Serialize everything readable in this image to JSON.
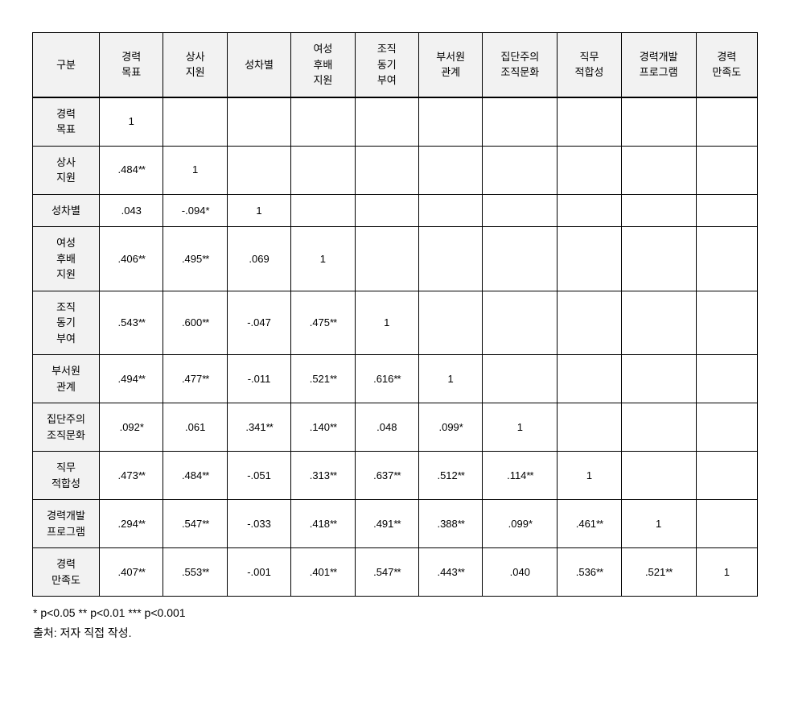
{
  "table": {
    "corner_label": "구분",
    "columns": [
      "경력\n목표",
      "상사\n지원",
      "성차별",
      "여성\n후배\n지원",
      "조직\n동기\n부여",
      "부서원\n관계",
      "집단주의\n조직문화",
      "직무\n적합성",
      "경력개발\n프로그램",
      "경력\n만족도"
    ],
    "row_labels": [
      "경력\n목표",
      "상사\n지원",
      "성차별",
      "여성\n후배\n지원",
      "조직\n동기\n부여",
      "부서원\n관계",
      "집단주의\n조직문화",
      "직무\n적합성",
      "경력개발\n프로그램",
      "경력\n만족도"
    ],
    "cells": [
      {
        "r": 0,
        "c": 0,
        "v": "1",
        "s": ""
      },
      {
        "r": 1,
        "c": 0,
        "v": ".484",
        "s": "**"
      },
      {
        "r": 1,
        "c": 1,
        "v": "1",
        "s": ""
      },
      {
        "r": 2,
        "c": 0,
        "v": ".043",
        "s": ""
      },
      {
        "r": 2,
        "c": 1,
        "v": "-.094",
        "s": "*"
      },
      {
        "r": 2,
        "c": 2,
        "v": "1",
        "s": ""
      },
      {
        "r": 3,
        "c": 0,
        "v": ".406",
        "s": "**"
      },
      {
        "r": 3,
        "c": 1,
        "v": ".495",
        "s": "**"
      },
      {
        "r": 3,
        "c": 2,
        "v": ".069",
        "s": ""
      },
      {
        "r": 3,
        "c": 3,
        "v": "1",
        "s": ""
      },
      {
        "r": 4,
        "c": 0,
        "v": ".543",
        "s": "**"
      },
      {
        "r": 4,
        "c": 1,
        "v": ".600",
        "s": "**"
      },
      {
        "r": 4,
        "c": 2,
        "v": "-.047",
        "s": ""
      },
      {
        "r": 4,
        "c": 3,
        "v": ".475",
        "s": "**"
      },
      {
        "r": 4,
        "c": 4,
        "v": "1",
        "s": ""
      },
      {
        "r": 5,
        "c": 0,
        "v": ".494",
        "s": "**"
      },
      {
        "r": 5,
        "c": 1,
        "v": ".477",
        "s": "**"
      },
      {
        "r": 5,
        "c": 2,
        "v": "-.011",
        "s": ""
      },
      {
        "r": 5,
        "c": 3,
        "v": ".521",
        "s": "**"
      },
      {
        "r": 5,
        "c": 4,
        "v": ".616",
        "s": "**"
      },
      {
        "r": 5,
        "c": 5,
        "v": "1",
        "s": ""
      },
      {
        "r": 6,
        "c": 0,
        "v": ".092",
        "s": "*"
      },
      {
        "r": 6,
        "c": 1,
        "v": ".061",
        "s": ""
      },
      {
        "r": 6,
        "c": 2,
        "v": ".341",
        "s": "**"
      },
      {
        "r": 6,
        "c": 3,
        "v": ".140",
        "s": "**"
      },
      {
        "r": 6,
        "c": 4,
        "v": ".048",
        "s": ""
      },
      {
        "r": 6,
        "c": 5,
        "v": ".099",
        "s": "*"
      },
      {
        "r": 6,
        "c": 6,
        "v": "1",
        "s": ""
      },
      {
        "r": 7,
        "c": 0,
        "v": ".473",
        "s": "**"
      },
      {
        "r": 7,
        "c": 1,
        "v": ".484",
        "s": "**"
      },
      {
        "r": 7,
        "c": 2,
        "v": "-.051",
        "s": ""
      },
      {
        "r": 7,
        "c": 3,
        "v": ".313",
        "s": "**"
      },
      {
        "r": 7,
        "c": 4,
        "v": ".637",
        "s": "**"
      },
      {
        "r": 7,
        "c": 5,
        "v": ".512",
        "s": "**"
      },
      {
        "r": 7,
        "c": 6,
        "v": ".114",
        "s": "**"
      },
      {
        "r": 7,
        "c": 7,
        "v": "1",
        "s": ""
      },
      {
        "r": 8,
        "c": 0,
        "v": ".294",
        "s": "**"
      },
      {
        "r": 8,
        "c": 1,
        "v": ".547",
        "s": "**"
      },
      {
        "r": 8,
        "c": 2,
        "v": "-.033",
        "s": ""
      },
      {
        "r": 8,
        "c": 3,
        "v": ".418",
        "s": "**"
      },
      {
        "r": 8,
        "c": 4,
        "v": ".491",
        "s": "**"
      },
      {
        "r": 8,
        "c": 5,
        "v": ".388",
        "s": "**"
      },
      {
        "r": 8,
        "c": 6,
        "v": ".099",
        "s": "*"
      },
      {
        "r": 8,
        "c": 7,
        "v": ".461",
        "s": "**"
      },
      {
        "r": 8,
        "c": 8,
        "v": "1",
        "s": ""
      },
      {
        "r": 9,
        "c": 0,
        "v": ".407",
        "s": "**"
      },
      {
        "r": 9,
        "c": 1,
        "v": ".553",
        "s": "**"
      },
      {
        "r": 9,
        "c": 2,
        "v": "-.001",
        "s": ""
      },
      {
        "r": 9,
        "c": 3,
        "v": ".401",
        "s": "**"
      },
      {
        "r": 9,
        "c": 4,
        "v": ".547",
        "s": "**"
      },
      {
        "r": 9,
        "c": 5,
        "v": ".443",
        "s": "**"
      },
      {
        "r": 9,
        "c": 6,
        "v": ".040",
        "s": ""
      },
      {
        "r": 9,
        "c": 7,
        "v": ".536",
        "s": "**"
      },
      {
        "r": 9,
        "c": 8,
        "v": ".521",
        "s": "**"
      },
      {
        "r": 9,
        "c": 9,
        "v": "1",
        "s": ""
      }
    ],
    "col_widths": [
      "col-label",
      "col-data",
      "col-data",
      "col-data",
      "col-data",
      "col-data",
      "col-data",
      "col-data-wide",
      "col-data",
      "col-data-wide",
      "col-data"
    ]
  },
  "notes": {
    "significance": "* p<0.05 ** p<0.01 *** p<0.001",
    "source": "출처: 저자 직접 작성."
  },
  "style": {
    "header_bg": "#f2f2f2",
    "border_color": "#000000",
    "text_color": "#000000",
    "background": "#ffffff",
    "font_family": "Malgun Gothic",
    "cell_font_size": 13,
    "note_font_size": 14
  }
}
